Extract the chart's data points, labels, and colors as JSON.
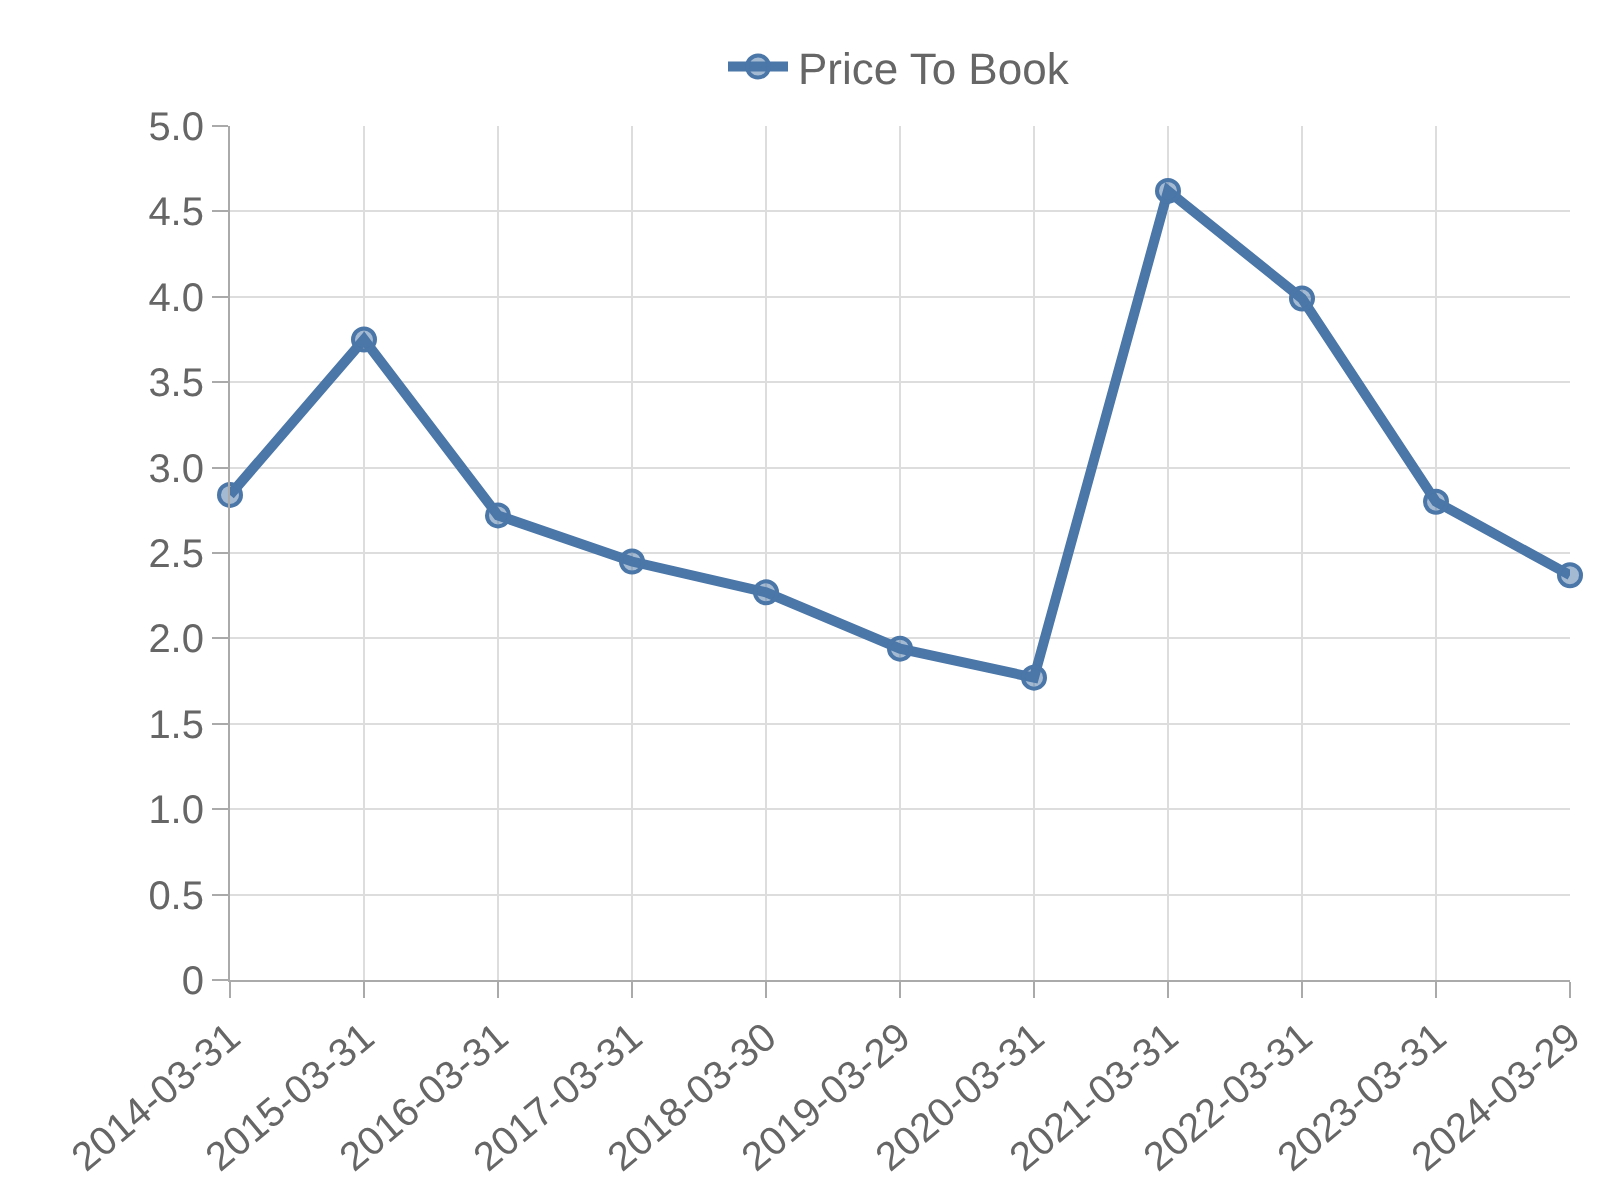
{
  "chart_data": {
    "type": "line",
    "categories": [
      "2014-03-31",
      "2015-03-31",
      "2016-03-31",
      "2017-03-31",
      "2018-03-30",
      "2019-03-29",
      "2020-03-31",
      "2021-03-31",
      "2022-03-31",
      "2023-03-31",
      "2024-03-29"
    ],
    "series": [
      {
        "name": "Price To Book",
        "color": "#4a76a8",
        "values": [
          2.84,
          3.75,
          2.72,
          2.45,
          2.27,
          1.94,
          1.77,
          4.62,
          3.99,
          2.8,
          2.37
        ]
      }
    ],
    "ylim": [
      0,
      5
    ],
    "yticks": [
      0,
      {
        "value": 0.5,
        "label": "0.5"
      },
      {
        "value": 1,
        "label": "1.0"
      },
      {
        "value": 1.5,
        "label": "1.5"
      },
      {
        "value": 2,
        "label": "2.0"
      },
      {
        "value": 2.5,
        "label": "2.5"
      },
      {
        "value": 3,
        "label": "3.0"
      },
      {
        "value": 3.5,
        "label": "3.5"
      },
      {
        "value": 4,
        "label": "4.0"
      },
      {
        "value": 4.5,
        "label": "4.5"
      },
      {
        "value": 5,
        "label": "5.0"
      }
    ],
    "grid": true,
    "legend": "top",
    "marker": "circle",
    "line_style": "solid"
  }
}
